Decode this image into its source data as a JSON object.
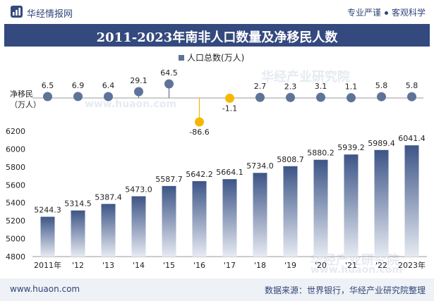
{
  "header": {
    "brand": "华经情报网",
    "tagline_left": "专业严谨",
    "tagline_right": "客观科学"
  },
  "title": "2011-2023年南非人口数量及净移民人数",
  "footer": {
    "website": "www.huaon.com",
    "source": "数据来源：世界银行，华经产业研究院整理"
  },
  "watermarks": [
    "华经产业研究院",
    "www.huaon.com",
    "华经产业研究院",
    "www.huaon.com"
  ],
  "colors": {
    "bar_top": "#3d5587",
    "bar_bottom": "#e6eaf2",
    "marker": "#5f7399",
    "negative_marker": "#f5b800",
    "title_bg": "#34497e"
  },
  "chart_data": {
    "type": "bar",
    "categories": [
      "2011年",
      "'12",
      "'13",
      "'14",
      "'15",
      "'16",
      "'17",
      "'18",
      "'19",
      "'20",
      "'21",
      "'22",
      "2023年"
    ],
    "series": [
      {
        "name": "人口总数(万人)",
        "type": "bar",
        "values": [
          5244.3,
          5314.5,
          5387.4,
          5473.0,
          5587.7,
          5642.2,
          5664.1,
          5734.0,
          5808.7,
          5880.2,
          5939.2,
          5989.4,
          6041.4
        ],
        "labels": [
          "5244.3",
          "5314.5",
          "5387.4",
          "5473.0",
          "5587.7",
          "5642.2",
          "5664.1",
          "5734.0",
          "5808.7",
          "5880.2",
          "5939.2",
          "5989.4",
          "6041.4"
        ]
      },
      {
        "name": "净移民(万人)",
        "type": "lollipop",
        "values": [
          6.5,
          6.9,
          6.4,
          29.1,
          64.5,
          -86.6,
          -1.1,
          2.7,
          2.3,
          3.1,
          1.1,
          5.8,
          5.8
        ],
        "labels": [
          "6.5",
          "6.9",
          "6.4",
          "29.1",
          "64.5",
          "-86.6",
          "-1.1",
          "2.7",
          "2.3",
          "3.1",
          "1.1",
          "5.8",
          "5.8"
        ]
      }
    ],
    "legend": "人口总数(万人)",
    "legend_position": "top-center",
    "upper_ylabel": "净移民\n（万人）",
    "yticks": [
      "4800",
      "5000",
      "5200",
      "5400",
      "5600",
      "5800",
      "6000",
      "6200"
    ],
    "ylim": [
      4800,
      6200
    ]
  }
}
